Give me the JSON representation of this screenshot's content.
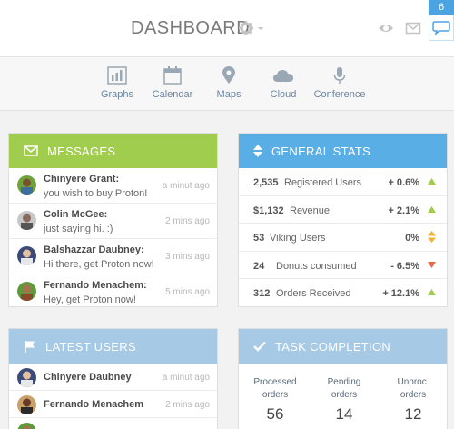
{
  "header": {
    "title": "DASHBOARD",
    "message_count": "6",
    "icons": [
      "gear-icon",
      "eye-icon",
      "envelope-icon",
      "speech-bubble-icon"
    ]
  },
  "nav": {
    "items": [
      {
        "label": "Graphs",
        "icon": "bar-chart-icon"
      },
      {
        "label": "Calendar",
        "icon": "calendar-icon"
      },
      {
        "label": "Maps",
        "icon": "map-pin-icon"
      },
      {
        "label": "Cloud",
        "icon": "cloud-icon"
      },
      {
        "label": "Conference",
        "icon": "microphone-icon"
      }
    ]
  },
  "messages": {
    "title": "MESSAGES",
    "items": [
      {
        "name": "Chinyere Grant:",
        "text": "you wish to buy Proton!",
        "time": "a minut ago"
      },
      {
        "name": "Colin McGee:",
        "text": "just saying hi. :)",
        "time": "2 mins ago"
      },
      {
        "name": "Balshazzar Daubney:",
        "text": "Hi there, get Proton now!",
        "time": "3 mins ago"
      },
      {
        "name": "Fernando Menachem:",
        "text": "Hey, get Proton now!",
        "time": "5 mins ago"
      }
    ]
  },
  "stats": {
    "title": "GENERAL STATS",
    "items": [
      {
        "value": "2,535",
        "label": "Registered Users",
        "change": "+ 0.6%",
        "trend": "up"
      },
      {
        "value": "$1,132",
        "label": "Revenue",
        "change": "+ 2.1%",
        "trend": "up"
      },
      {
        "value": "53",
        "label": "Viking Users",
        "change": "0%",
        "trend": "neutral"
      },
      {
        "value": "24",
        "label": "Donuts consumed",
        "change": "- 6.5%",
        "trend": "down"
      },
      {
        "value": "312",
        "label": "Orders Received",
        "change": "+ 12.1%",
        "trend": "up"
      }
    ]
  },
  "latest_users": {
    "title": "LATEST USERS",
    "items": [
      {
        "name": "Chinyere Daubney",
        "time": "a minut ago"
      },
      {
        "name": "Fernando Menachem",
        "time": "2 mins ago"
      }
    ]
  },
  "tasks": {
    "title": "TASK COMPLETION",
    "items": [
      {
        "label1": "Processed",
        "label2": "orders",
        "value": "56"
      },
      {
        "label1": "Pending",
        "label2": "orders",
        "value": "14"
      },
      {
        "label1": "Unproc.",
        "label2": "orders",
        "value": "12"
      }
    ]
  },
  "colors": {
    "green": "#a0cd4e",
    "blue": "#5aaee6",
    "light_blue": "#a6c9e5",
    "up": "#a0cd4e",
    "down": "#e8694a",
    "neutral": "#f0b43a"
  }
}
